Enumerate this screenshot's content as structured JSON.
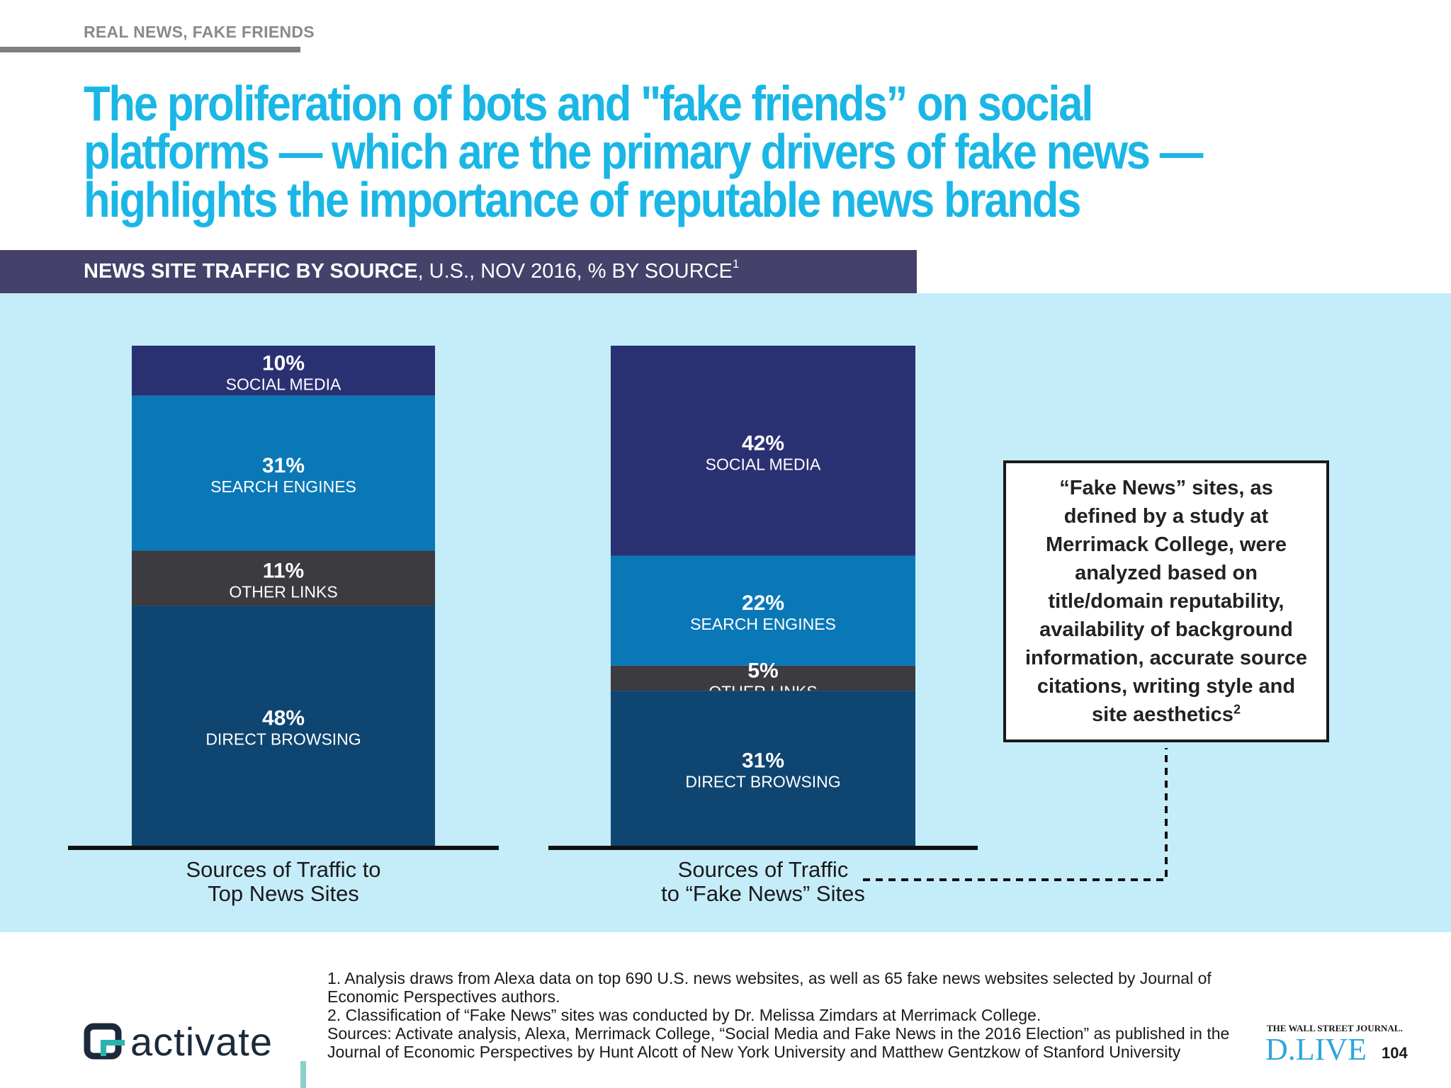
{
  "section_tag": "REAL NEWS, FAKE FRIENDS",
  "headline": "The proliferation of bots and \"fake friends” on social platforms — which are the primary drivers of fake news — highlights the importance of reputable news brands",
  "chart_header": {
    "bold": "NEWS SITE TRAFFIC BY SOURCE",
    "rest": ", U.S., NOV 2016, % BY SOURCE",
    "sup": "1"
  },
  "chart_data": {
    "type": "bar",
    "stacked": true,
    "unit": "%",
    "ylim": [
      0,
      100
    ],
    "grid": false,
    "categories": [
      [
        "Sources of Traffic to",
        "Top News Sites"
      ],
      [
        "Sources of Traffic",
        "to “Fake News” Sites"
      ]
    ],
    "series": [
      {
        "name": "SOCIAL MEDIA",
        "color": "#2a3173",
        "values": [
          10,
          42
        ]
      },
      {
        "name": "SEARCH ENGINES",
        "color": "#0a78b7",
        "values": [
          31,
          22
        ]
      },
      {
        "name": "OTHER LINKS",
        "color": "#3c3b40",
        "values": [
          11,
          5
        ]
      },
      {
        "name": "DIRECT BROWSING",
        "color": "#0f4571",
        "values": [
          48,
          31
        ]
      }
    ]
  },
  "note_box": {
    "text": "“Fake News” sites, as defined by a study at Merrimack College, were analyzed based on title/domain reputability, availability of background information, accurate source citations, writing style and site aesthetics",
    "sup": "2"
  },
  "footnotes": [
    "1. Analysis draws from Alexa data on top 690 U.S. news websites, as well as 65 fake news websites selected by Journal of Economic Perspectives authors.",
    "2. Classification of “Fake News” sites was conducted by Dr. Melissa Zimdars at Merrimack College.",
    "Sources: Activate analysis, Alexa, Merrimack College, “Social Media and Fake News in the 2016 Election” as published in the Journal of Economic Perspectives by Hunt Alcott of New York University and Matthew Gentzkow of Stanford University"
  ],
  "logo_text": "activate",
  "wsj_small": "THE WALL STREET JOURNAL.",
  "wsj_big": "D.LIVE",
  "page_number": "104",
  "colors": {
    "accent": "#1ab7e6",
    "header_bg": "#44426a",
    "panel_bg": "#c5ecf9"
  }
}
